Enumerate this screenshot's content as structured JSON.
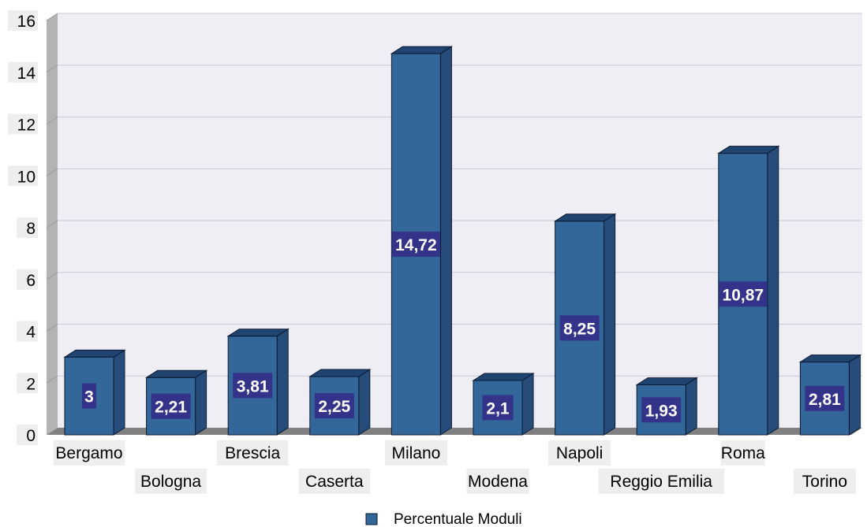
{
  "chart_data": {
    "type": "bar",
    "categories": [
      "Bergamo",
      "Bologna",
      "Brescia",
      "Caserta",
      "Milano",
      "Modena",
      "Napoli",
      "Reggio Emilia",
      "Roma",
      "Torino"
    ],
    "series": [
      {
        "name": "Percentuale Moduli",
        "values": [
          3,
          2.21,
          3.81,
          2.25,
          14.72,
          2.1,
          8.25,
          1.93,
          10.87,
          2.81
        ],
        "labels": [
          "3",
          "2,21",
          "3,81",
          "2,25",
          "14,72",
          "2,1",
          "8,25",
          "1,93",
          "10,87",
          "2,81"
        ]
      }
    ],
    "yticks": [
      0,
      2,
      4,
      6,
      8,
      10,
      12,
      14,
      16
    ],
    "ylim": [
      0,
      16
    ],
    "grid": true,
    "three_d": true,
    "legend_position": "bottom",
    "title": "",
    "xlabel": "",
    "ylabel": "",
    "colors": {
      "bar_front": "#336699",
      "bar_top": "#1f4470",
      "bar_side": "#264d7a",
      "bar_edge": "#0b1a33",
      "data_label_bg": "#33338a",
      "plot_back": "#eeeef4",
      "plot_floor": "#808080",
      "plot_wall": "#b3b3b3",
      "gridline": "#c8c8d2",
      "label_bg": "#eeeeee"
    }
  }
}
